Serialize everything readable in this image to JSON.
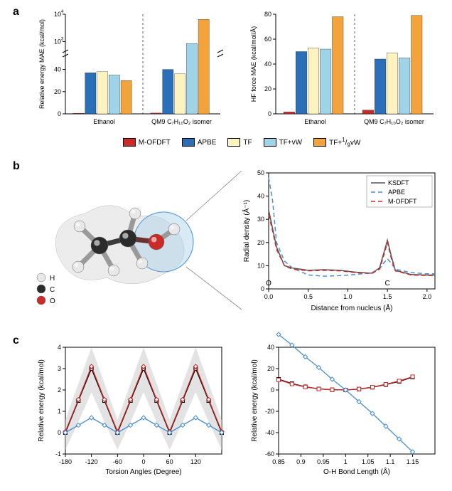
{
  "panel_labels": {
    "a": "a",
    "b": "b",
    "c": "c"
  },
  "colors": {
    "m_ofdft": "#c92a2a",
    "apbe": "#2b6fb8",
    "tf": "#fcf3c0",
    "tf_vw": "#9fd4e8",
    "tf_19vw": "#f2a33c",
    "ksdft": "#555555",
    "apbe_line": "#4a8fd1",
    "mofdft_line": "#c92a2a",
    "grid": "#e0e0e0",
    "band": "#d0d0d0",
    "black": "#000000",
    "white": "#ffffff",
    "atom_h": "#e8e8e8",
    "atom_c": "#2b2b2b",
    "atom_o": "#c92a2a",
    "molecule_surface": "#dcdcdc",
    "sphere": "#a8d0e8"
  },
  "legend": {
    "items": [
      {
        "label": "M-OFDFT",
        "color": "#c92a2a"
      },
      {
        "label": "APBE",
        "color": "#2b6fb8"
      },
      {
        "label": "TF",
        "color": "#fcf3c0"
      },
      {
        "label": "TF+vW",
        "color": "#9fd4e8"
      },
      {
        "label": "TF+1/9vW",
        "color": "#f2a33c"
      }
    ]
  },
  "panel_a_left": {
    "type": "bar",
    "ylabel": "Relative energy MAE (kcal/mol)",
    "categories": [
      "Ethanol",
      "QM9 C₇H₁₀O₂ isomer"
    ],
    "yticks_lower": [
      0,
      20,
      40
    ],
    "yticks_upper": [
      1000,
      10000
    ],
    "log_upper": true,
    "break_at": 50,
    "series": [
      {
        "name": "M-OFDFT",
        "color": "#c92a2a",
        "values": [
          0.5,
          0.7
        ]
      },
      {
        "name": "APBE",
        "color": "#2b6fb8",
        "values": [
          37,
          40
        ]
      },
      {
        "name": "TF",
        "color": "#fcf3c0",
        "values": [
          38,
          36
        ]
      },
      {
        "name": "TF+vW",
        "color": "#9fd4e8",
        "values": [
          35,
          850
        ]
      },
      {
        "name": "TF+1/9vW",
        "color": "#f2a33c",
        "values": [
          30,
          6500
        ]
      }
    ]
  },
  "panel_a_right": {
    "type": "bar",
    "ylabel": "HF force MAE (kcal/mol/Å)",
    "categories": [
      "Ethanol",
      "QM9 C₇H₁₀O₂ isomer"
    ],
    "yticks": [
      0,
      20,
      40,
      60,
      80
    ],
    "series": [
      {
        "name": "M-OFDFT",
        "color": "#c92a2a",
        "values": [
          1.5,
          3
        ]
      },
      {
        "name": "APBE",
        "color": "#2b6fb8",
        "values": [
          50,
          44
        ]
      },
      {
        "name": "TF",
        "color": "#fcf3c0",
        "values": [
          53,
          49
        ]
      },
      {
        "name": "TF+vW",
        "color": "#9fd4e8",
        "values": [
          52,
          45
        ]
      },
      {
        "name": "TF+1/9vW",
        "color": "#f2a33c",
        "values": [
          78,
          79
        ]
      }
    ]
  },
  "panel_b_molecule": {
    "atom_legend": [
      {
        "label": "H",
        "color": "#e8e8e8"
      },
      {
        "label": "C",
        "color": "#2b2b2b"
      },
      {
        "label": "O",
        "color": "#c92a2a"
      }
    ]
  },
  "panel_b_chart": {
    "type": "line",
    "xlabel": "Distance from nucleus (Å)",
    "ylabel": "Radial density (Å⁻¹)",
    "xticks": [
      0.0,
      0.5,
      1.0,
      1.5,
      2.0
    ],
    "yticks": [
      0,
      10,
      20,
      30,
      40,
      50
    ],
    "x_inner_labels": [
      "O",
      "C"
    ],
    "x_inner_positions": [
      0.0,
      1.5
    ],
    "legend": [
      {
        "label": "KSDFT",
        "color": "#555555",
        "dash": "none"
      },
      {
        "label": "APBE",
        "color": "#4a8fd1",
        "dash": "6,4"
      },
      {
        "label": "M-OFDFT",
        "color": "#c92a2a",
        "dash": "6,4"
      }
    ],
    "series": {
      "KSDFT": {
        "x": [
          0,
          0.05,
          0.1,
          0.2,
          0.3,
          0.5,
          0.7,
          0.9,
          1.1,
          1.3,
          1.4,
          1.45,
          1.5,
          1.55,
          1.6,
          1.8,
          2.0,
          2.1
        ],
        "y": [
          34,
          26,
          18,
          10,
          9,
          8,
          8.3,
          8,
          7.2,
          6.8,
          9,
          15,
          21,
          14,
          8,
          6.2,
          6,
          6
        ]
      },
      "APBE": {
        "x": [
          0,
          0.05,
          0.1,
          0.2,
          0.3,
          0.5,
          0.7,
          0.9,
          1.1,
          1.3,
          1.4,
          1.45,
          1.5,
          1.55,
          1.6,
          1.8,
          2.0,
          2.1
        ],
        "y": [
          48,
          38,
          20,
          12,
          9,
          6,
          5.5,
          5.7,
          6.2,
          7,
          8.5,
          11,
          13,
          11,
          8.5,
          7,
          6.5,
          6.5
        ]
      },
      "M-OFDFT": {
        "x": [
          0,
          0.05,
          0.1,
          0.2,
          0.3,
          0.5,
          0.7,
          0.9,
          1.1,
          1.3,
          1.4,
          1.45,
          1.5,
          1.55,
          1.6,
          1.8,
          2.0,
          2.1
        ],
        "y": [
          32,
          25,
          17,
          10,
          8.5,
          7.8,
          8,
          7.8,
          7.0,
          6.6,
          8.5,
          14,
          20,
          13,
          7.8,
          6.0,
          5.8,
          5.8
        ]
      }
    }
  },
  "panel_c_left": {
    "type": "line",
    "xlabel": "Torsion Angles (Degree)",
    "ylabel": "Relative energy (kcal/mol)",
    "xticks": [
      -180,
      -120,
      -60,
      0,
      60,
      120
    ],
    "yticks": [
      -1,
      0,
      1,
      2,
      3,
      4
    ],
    "band": {
      "x": [
        -180,
        -150,
        -120,
        -90,
        -60,
        -30,
        0,
        30,
        60,
        90,
        120,
        150,
        180
      ],
      "lo": [
        -0.8,
        0.5,
        1.9,
        0.5,
        -0.8,
        0.5,
        1.9,
        0.5,
        -0.8,
        0.5,
        1.9,
        0.5,
        -0.8
      ],
      "hi": [
        0.6,
        2.3,
        4.0,
        2.3,
        0.6,
        2.3,
        4.0,
        2.3,
        0.6,
        2.3,
        4.0,
        2.3,
        0.6
      ]
    },
    "series": [
      {
        "name": "KSDFT",
        "color": "#000000",
        "marker": "square",
        "dash": "none",
        "x": [
          -180,
          -150,
          -120,
          -90,
          -60,
          -30,
          0,
          30,
          60,
          90,
          120,
          150,
          180
        ],
        "y": [
          0,
          1.5,
          3.0,
          1.5,
          0,
          1.5,
          3.0,
          1.5,
          0,
          1.5,
          3.0,
          1.5,
          0
        ]
      },
      {
        "name": "M-OFDFT",
        "color": "#c92a2a",
        "marker": "diamond",
        "dash": "none",
        "x": [
          -180,
          -150,
          -120,
          -90,
          -60,
          -30,
          0,
          30,
          60,
          90,
          120,
          150,
          180
        ],
        "y": [
          0.05,
          1.55,
          3.1,
          1.55,
          0.05,
          1.55,
          3.1,
          1.55,
          0.05,
          1.55,
          3.1,
          1.55,
          0.05
        ]
      },
      {
        "name": "APBE",
        "color": "#4a8fd1",
        "marker": "diamond",
        "dash": "none",
        "x": [
          -180,
          -150,
          -120,
          -90,
          -60,
          -30,
          0,
          30,
          60,
          90,
          120,
          150,
          180
        ],
        "y": [
          0,
          0.35,
          0.7,
          0.35,
          0,
          0.35,
          0.7,
          0.35,
          0,
          0.35,
          0.7,
          0.35,
          0
        ]
      }
    ]
  },
  "panel_c_right": {
    "type": "line",
    "xlabel": "O-H Bond Length (Å)",
    "ylabel": "Relative energy (kcal/mol)",
    "xticks": [
      0.85,
      0.9,
      0.95,
      1.0,
      1.05,
      1.1,
      1.15
    ],
    "yticks": [
      -60,
      -40,
      -20,
      0,
      20,
      40
    ],
    "series": [
      {
        "name": "KSDFT",
        "color": "#000000",
        "marker": "square",
        "x": [
          0.85,
          0.88,
          0.91,
          0.94,
          0.97,
          1.0,
          1.03,
          1.06,
          1.09,
          1.12,
          1.15
        ],
        "y": [
          10,
          6,
          3,
          1,
          0.2,
          0,
          0.8,
          2.5,
          5,
          8,
          12
        ]
      },
      {
        "name": "M-OFDFT",
        "color": "#c92a2a",
        "marker": "square",
        "x": [
          0.85,
          0.88,
          0.91,
          0.94,
          0.97,
          1.0,
          1.03,
          1.06,
          1.09,
          1.12,
          1.15
        ],
        "y": [
          9.5,
          5.6,
          2.8,
          0.9,
          0.15,
          0,
          0.9,
          2.7,
          5.3,
          8.4,
          12.4
        ]
      },
      {
        "name": "APBE",
        "color": "#4a8fd1",
        "marker": "diamond",
        "x": [
          0.85,
          0.88,
          0.91,
          0.94,
          0.97,
          1.0,
          1.03,
          1.06,
          1.09,
          1.12,
          1.15
        ],
        "y": [
          52,
          42,
          31,
          21,
          10,
          0,
          -11,
          -22,
          -34,
          -46,
          -58
        ]
      }
    ]
  }
}
